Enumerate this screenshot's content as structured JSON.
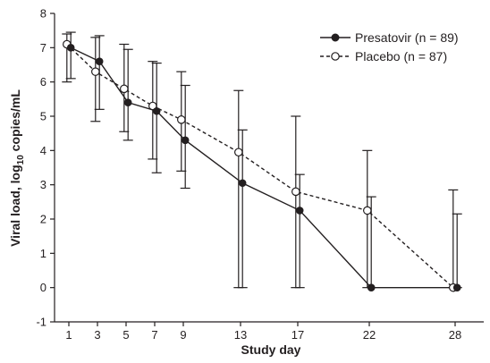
{
  "chart_data": {
    "type": "line",
    "xlabel": "Study day",
    "ylabel_parts": [
      "Viral load, log",
      "10",
      " copies/mL"
    ],
    "x_ticks": [
      1,
      3,
      5,
      7,
      9,
      13,
      17,
      22,
      28
    ],
    "y_ticks": [
      -1,
      0,
      1,
      2,
      3,
      4,
      5,
      6,
      7,
      8
    ],
    "xlim": [
      0,
      30
    ],
    "ylim": [
      -1,
      8
    ],
    "legend_position": "top-right",
    "series": [
      {
        "name": "Presatovir (n = 89)",
        "style": "solid",
        "marker": "filled-circle",
        "x": [
          1,
          3,
          5,
          7,
          9,
          13,
          17,
          22,
          28
        ],
        "y": [
          7.0,
          6.6,
          5.4,
          5.15,
          4.3,
          3.05,
          2.25,
          0.0,
          0.0
        ],
        "err_low": [
          6.1,
          5.2,
          4.3,
          3.35,
          2.9,
          0.0,
          0.0,
          0.0,
          0.0
        ],
        "err_high": [
          7.45,
          7.35,
          6.95,
          6.55,
          5.9,
          4.6,
          3.3,
          2.65,
          2.15
        ]
      },
      {
        "name": "Placebo (n = 87)",
        "style": "dashed",
        "marker": "open-circle",
        "x": [
          1,
          3,
          5,
          7,
          9,
          13,
          17,
          22,
          28
        ],
        "y": [
          7.1,
          6.3,
          5.8,
          5.3,
          4.9,
          3.95,
          2.8,
          2.25,
          0.0
        ],
        "err_low": [
          6.0,
          4.85,
          4.55,
          3.75,
          3.4,
          0.0,
          0.0,
          0.0,
          0.0
        ],
        "err_high": [
          7.4,
          7.3,
          7.1,
          6.6,
          6.3,
          5.75,
          5.0,
          4.0,
          2.85
        ]
      }
    ]
  }
}
